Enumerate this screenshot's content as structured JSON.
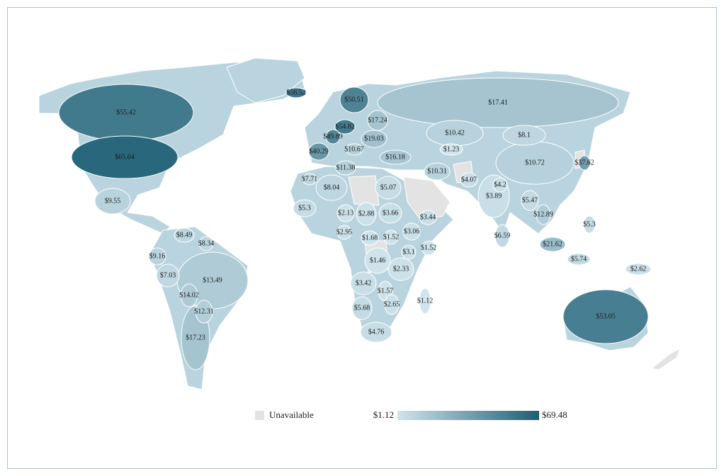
{
  "chart_data": {
    "type": "choropleth",
    "values": [
      56.52,
      50.51,
      55.42,
      17.41,
      54.82,
      17.24,
      49.89,
      19.03,
      10.42,
      8.1,
      40.29,
      10.67,
      1.23,
      65.04,
      16.18,
      10.72,
      37.62,
      11.38,
      10.31,
      7.71,
      4.07,
      8.04,
      5.07,
      4.2,
      3.89,
      5.47,
      9.55,
      5.3,
      2.13,
      2.88,
      3.66,
      3.44,
      12.89,
      5.3,
      8.49,
      2.95,
      3.06,
      1.68,
      1.52,
      8.34,
      6.59,
      21.62,
      1.52,
      9.16,
      3.1,
      1.46,
      5.74,
      7.03,
      13.49,
      2.33,
      2.62,
      3.42,
      14.02,
      1.57,
      1.12,
      2.65,
      5.68,
      12.31,
      53.05,
      4.76,
      17.23
    ],
    "value_labels": [
      "$56.52",
      "$50.51",
      "$55.42",
      "$17.41",
      "$54.82",
      "$17.24",
      "$49.89",
      "$19.03",
      "$10.42",
      "$8.1",
      "$40.29",
      "$10.67",
      "$1.23",
      "$65.04",
      "$16.18",
      "$10.72",
      "$37.62",
      "$11.38",
      "$10.31",
      "$7.71",
      "$4.07",
      "$8.04",
      "$5.07",
      "$4.2",
      "$3.89",
      "$5.47",
      "$9.55",
      "$5.3",
      "$2.13",
      "$2.88",
      "$3.66",
      "$3.44",
      "$12.89",
      "$5.3",
      "$8.49",
      "$2.95",
      "$3.06",
      "$1.68",
      "$1.52",
      "$8.34",
      "$6.59",
      "$21.62",
      "$1.52",
      "$9.16",
      "$3.1",
      "$1.46",
      "$5.74",
      "$7.03",
      "$13.49",
      "$2.33",
      "$2.62",
      "$3.42",
      "$14.02",
      "$1.57",
      "$1.12",
      "$2.65",
      "$5.68",
      "$12.31",
      "$53.05",
      "$4.76",
      "$17.23"
    ],
    "scale": {
      "min": {
        "value": 1.12,
        "label": "$1.12"
      },
      "max": {
        "value": 69.48,
        "label": "$69.48"
      }
    },
    "colors": {
      "low": "#cfe4ec",
      "high": "#1d5e74",
      "unavailable": "#e3e3e3"
    },
    "unavailable_label": "Unavailable"
  }
}
